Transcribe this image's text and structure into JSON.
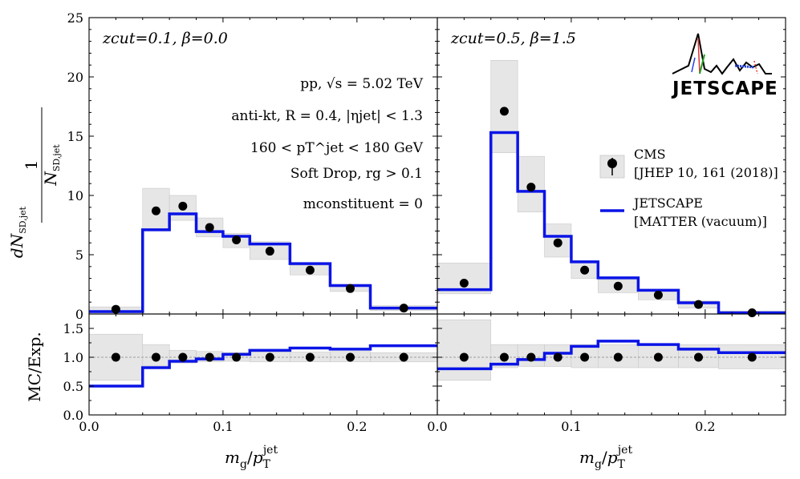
{
  "chart_data": {
    "type": "step",
    "x_label": "m_g/p_T^jet",
    "y_label_top": "1/N_SD,jet dN_SD,jet/d(m_g/p_T^jet)",
    "y_label_bottom": "MC/Exp.",
    "legend": {
      "cms_label_line1": "CMS",
      "cms_label_line2": "[JHEP 10, 161 (2018)]",
      "jetscape_label_line1": "JETSCAPE",
      "jetscape_label_line2": "[MATTER (vacuum)]"
    },
    "logo_text": "JETSCAPE",
    "annotations": [
      "pp, √s = 5.02 TeV",
      "anti-kt, R = 0.4, |ηjet| < 1.3",
      "160 < pT^jet < 180 GeV",
      "Soft Drop, rg > 0.1",
      "mconstituent = 0"
    ],
    "colors": {
      "jetscape": "#0a14e6",
      "cms_points": "#000000",
      "uncertainty_band": "#e6e6e6",
      "uncertainty_edge": "#c8c8c8"
    },
    "top_y_range": [
      0,
      25
    ],
    "top_y_ticks": [
      "0",
      "5",
      "10",
      "15",
      "20",
      "25"
    ],
    "ratio_y_range": [
      0.0,
      1.75
    ],
    "ratio_y_ticks": [
      "0.0",
      "0.5",
      "1.0",
      "1.5"
    ],
    "panels": [
      {
        "title": "zcut=0.1, β=0.0",
        "x_range": [
          0.0,
          0.26
        ],
        "x_ticks": [
          "0.0",
          "0.1",
          "0.2"
        ],
        "bin_edges": [
          0.0,
          0.04,
          0.06,
          0.08,
          0.1,
          0.12,
          0.15,
          0.18,
          0.21,
          0.26
        ],
        "mc_values": [
          0.2,
          7.1,
          8.45,
          6.95,
          6.55,
          5.9,
          4.25,
          2.4,
          0.5
        ],
        "data_x": [
          0.02,
          0.05,
          0.07,
          0.09,
          0.11,
          0.135,
          0.165,
          0.195,
          0.235
        ],
        "data_y": [
          0.4,
          8.7,
          9.1,
          7.3,
          6.25,
          5.3,
          3.7,
          2.15,
          0.5
        ],
        "data_band_low": [
          0.1,
          7.0,
          7.9,
          6.5,
          5.6,
          4.6,
          3.3,
          1.9,
          0.3
        ],
        "data_band_high": [
          0.6,
          10.6,
          10.0,
          8.1,
          6.8,
          6.1,
          4.1,
          2.5,
          0.7
        ],
        "ratio_values": [
          0.5,
          0.82,
          0.93,
          0.97,
          1.05,
          1.12,
          1.16,
          1.14,
          1.2
        ],
        "ratio_band_low": [
          0.6,
          0.85,
          0.9,
          0.92,
          0.93,
          0.92,
          0.92,
          0.92,
          0.92
        ],
        "ratio_band_high": [
          1.4,
          1.22,
          1.12,
          1.1,
          1.08,
          1.09,
          1.09,
          1.1,
          1.08
        ]
      },
      {
        "title": "zcut=0.5, β=1.5",
        "x_range": [
          0.0,
          0.26
        ],
        "x_ticks": [
          "0.0",
          "0.1",
          "0.2"
        ],
        "bin_edges": [
          0.0,
          0.04,
          0.06,
          0.08,
          0.1,
          0.12,
          0.15,
          0.18,
          0.21,
          0.26
        ],
        "mc_values": [
          2.05,
          15.3,
          10.35,
          6.55,
          4.4,
          3.05,
          2.0,
          0.95,
          0.1
        ],
        "data_x": [
          0.02,
          0.05,
          0.07,
          0.09,
          0.11,
          0.135,
          0.165,
          0.195,
          0.235
        ],
        "data_y": [
          2.6,
          17.1,
          10.7,
          6.0,
          3.7,
          2.35,
          1.6,
          0.8,
          0.1
        ],
        "data_band_low": [
          1.7,
          13.6,
          8.6,
          4.8,
          3.0,
          1.8,
          1.2,
          0.5,
          0.0
        ],
        "data_band_high": [
          4.3,
          21.4,
          13.3,
          7.6,
          4.5,
          2.9,
          2.1,
          1.1,
          0.25
        ],
        "ratio_values": [
          0.8,
          0.88,
          0.96,
          1.07,
          1.19,
          1.28,
          1.22,
          1.14,
          1.08
        ],
        "ratio_band_low": [
          0.6,
          0.82,
          0.84,
          0.84,
          0.82,
          0.82,
          0.82,
          0.82,
          0.8
        ],
        "ratio_band_high": [
          1.65,
          1.22,
          1.22,
          1.22,
          1.22,
          1.22,
          1.22,
          1.22,
          1.22
        ]
      }
    ]
  }
}
